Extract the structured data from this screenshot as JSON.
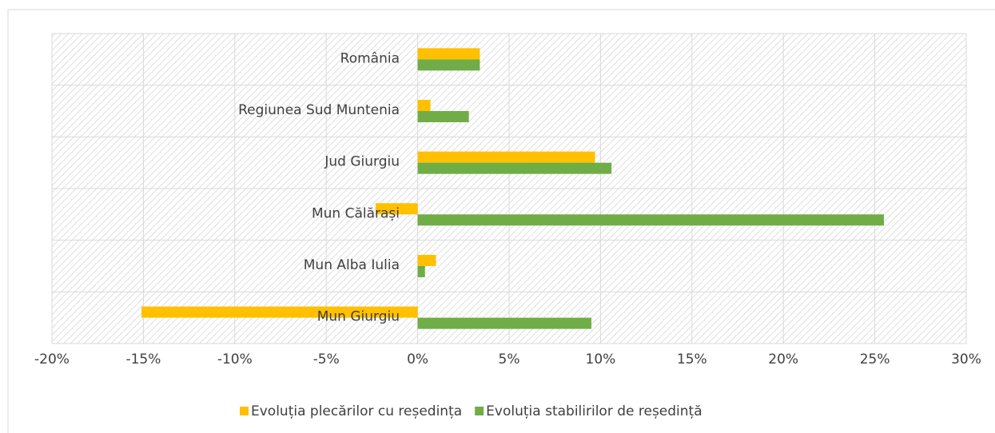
{
  "chart_data": {
    "type": "hbar",
    "categories": [
      "România",
      "Regiunea Sud Muntenia",
      "Jud Giurgiu",
      "Mun Călărași",
      "Mun Alba Iulia",
      "Mun Giurgiu"
    ],
    "series": [
      {
        "name": "Evoluția plecărilor cu reședința",
        "color": "#FFC000",
        "values": [
          3.4,
          0.7,
          9.7,
          -2.3,
          1.0,
          -15.1
        ]
      },
      {
        "name": "Evoluția stabilirilor de reședință",
        "color": "#70AD47",
        "values": [
          3.4,
          2.8,
          10.6,
          25.5,
          0.4,
          9.5
        ]
      }
    ],
    "xlim": [
      -20,
      30
    ],
    "xticks": [
      {
        "value": -20,
        "label": "-20%"
      },
      {
        "value": -15,
        "label": "-15%"
      },
      {
        "value": -10,
        "label": "-10%"
      },
      {
        "value": -5,
        "label": "-5%"
      },
      {
        "value": 0,
        "label": "0%"
      },
      {
        "value": 5,
        "label": "5%"
      },
      {
        "value": 10,
        "label": "10%"
      },
      {
        "value": 15,
        "label": "15%"
      },
      {
        "value": 20,
        "label": "20%"
      },
      {
        "value": 25,
        "label": "25%"
      },
      {
        "value": 30,
        "label": "30%"
      }
    ],
    "grid": true,
    "legend": "bottom"
  }
}
